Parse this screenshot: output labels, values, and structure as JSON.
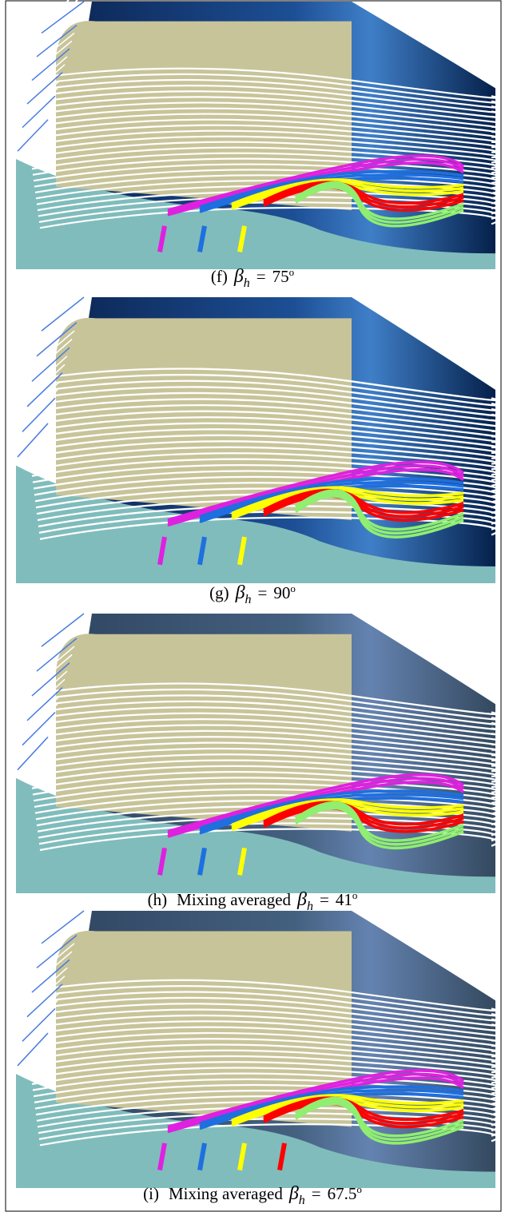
{
  "panels": [
    {
      "caption": {
        "label": "(f)",
        "symbol": "β",
        "subscript": "h",
        "equals": "=",
        "value": "75",
        "degree": "o"
      }
    },
    {
      "caption": {
        "label": "(g)",
        "symbol": "β",
        "subscript": "h",
        "equals": "=",
        "value": "90",
        "degree": "o"
      }
    },
    {
      "caption": {
        "label": "(h)",
        "prefix": "Mixing averaged",
        "symbol": "β",
        "subscript": "h",
        "equals": "=",
        "value": "41",
        "degree": "o"
      }
    },
    {
      "caption": {
        "label": "(i)",
        "prefix": "Mixing averaged",
        "symbol": "β",
        "subscript": "h",
        "equals": "=",
        "value": "67.5",
        "degree": "o"
      }
    }
  ]
}
